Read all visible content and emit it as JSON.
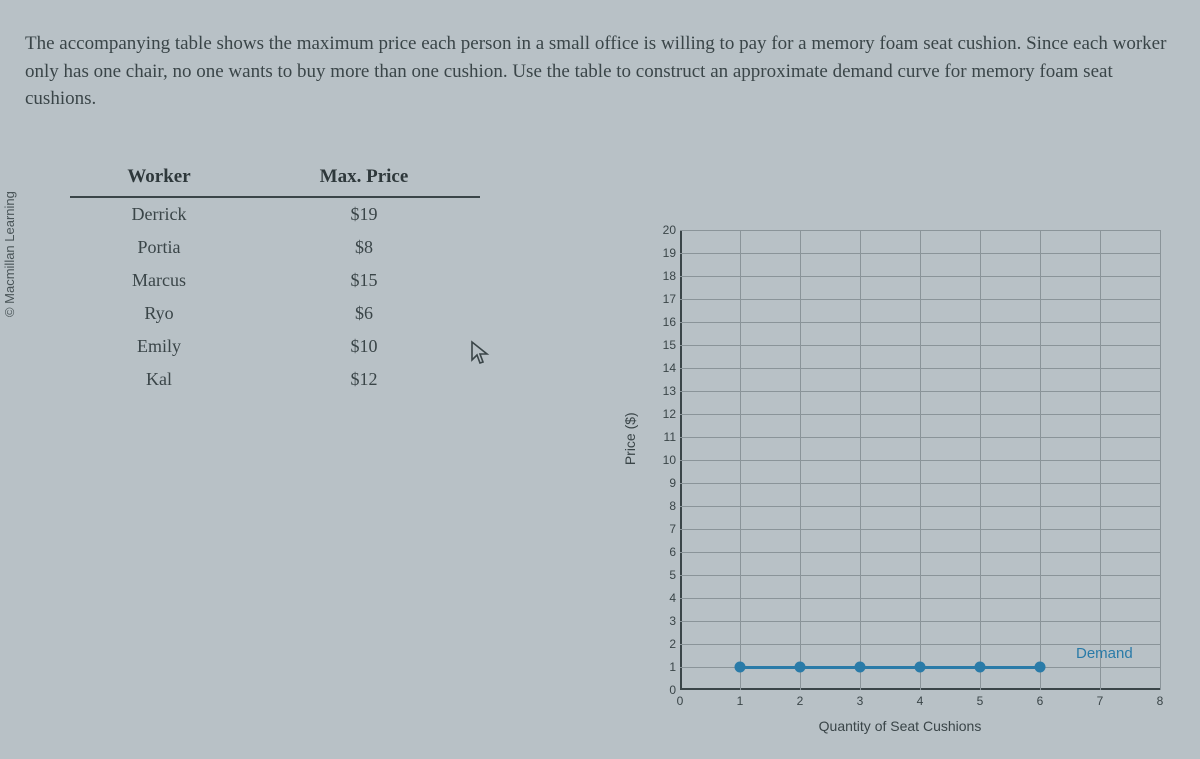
{
  "copyright": "© Macmillan Learning",
  "question_text": "The accompanying table shows the maximum price each person in a small office is willing to pay for a memory foam seat cushion. Since each worker only has one chair, no one wants to buy more than one cushion. Use the table to construct an approximate demand curve for memory foam seat cushions.",
  "table": {
    "headers": [
      "Worker",
      "Max. Price"
    ],
    "rows": [
      [
        "Derrick",
        "$19"
      ],
      [
        "Portia",
        "$8"
      ],
      [
        "Marcus",
        "$15"
      ],
      [
        "Ryo",
        "$6"
      ],
      [
        "Emily",
        "$10"
      ],
      [
        "Kal",
        "$12"
      ]
    ]
  },
  "chart": {
    "type": "scatter-line",
    "ylabel": "Price ($)",
    "xlabel": "Quantity of Seat Cushions",
    "xlim": [
      0,
      8
    ],
    "ylim": [
      0,
      20
    ],
    "yticks": [
      0,
      1,
      2,
      3,
      4,
      5,
      6,
      7,
      8,
      9,
      10,
      11,
      12,
      13,
      14,
      15,
      16,
      17,
      18,
      19,
      20
    ],
    "xticks": [
      0,
      1,
      2,
      3,
      4,
      5,
      6,
      7,
      8
    ],
    "grid_color": "#8a9499",
    "axis_color": "#3a4548",
    "background": "#b8c1c6",
    "series": {
      "label": "Demand",
      "label_color": "#2a7ba8",
      "line_color": "#2a7ba8",
      "point_color": "#2a7ba8",
      "point_radius": 5.5,
      "line_width": 2.5,
      "points": [
        {
          "x": 1,
          "y": 1
        },
        {
          "x": 2,
          "y": 1
        },
        {
          "x": 3,
          "y": 1
        },
        {
          "x": 4,
          "y": 1
        },
        {
          "x": 5,
          "y": 1
        },
        {
          "x": 6,
          "y": 1
        }
      ],
      "legend_pos": {
        "x": 6.6,
        "y": 1.6
      }
    }
  }
}
